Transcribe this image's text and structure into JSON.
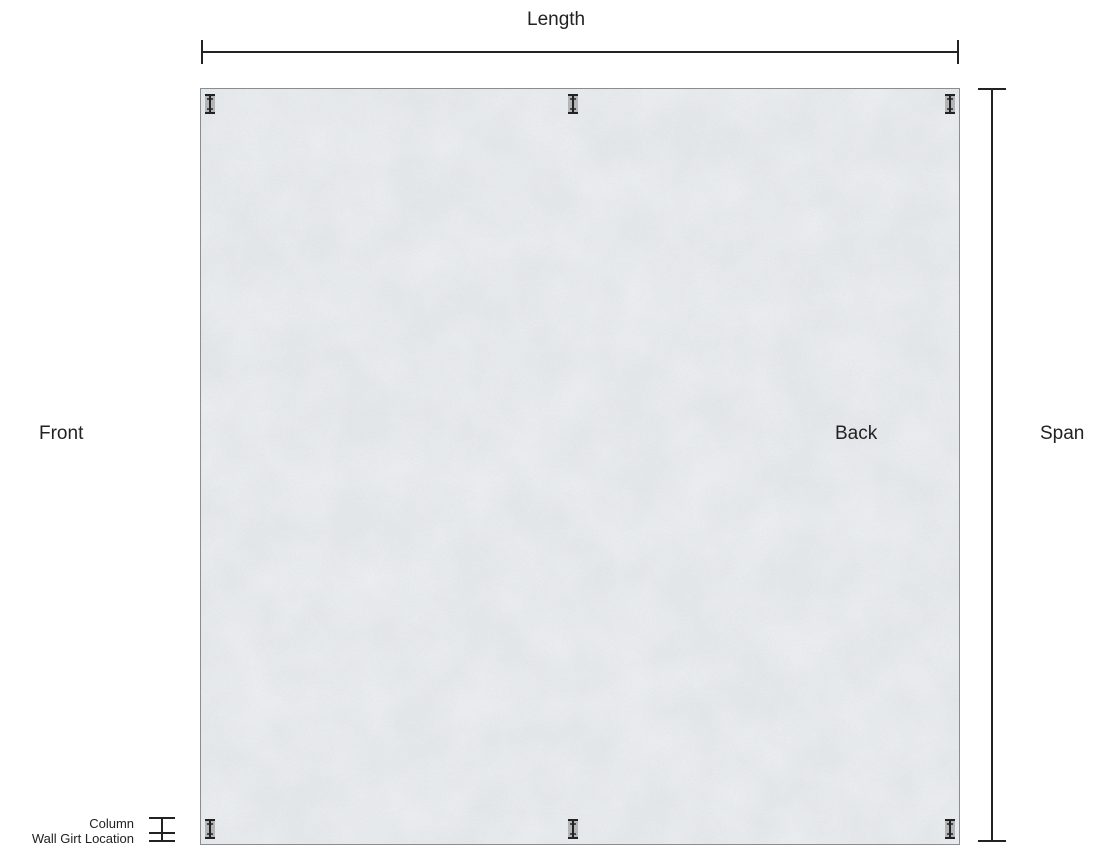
{
  "labels": {
    "length": "Length",
    "span": "Span",
    "front": "Front",
    "back": "Back"
  },
  "legend": {
    "column": "Column",
    "wall_girt_location": "Wall Girt Location"
  },
  "columns": [
    {
      "name": "column-top-left"
    },
    {
      "name": "column-top-middle"
    },
    {
      "name": "column-top-right"
    },
    {
      "name": "column-bottom-left"
    },
    {
      "name": "column-bottom-middle"
    },
    {
      "name": "column-bottom-right"
    }
  ],
  "colors": {
    "slab": "#dde1e4",
    "slab_light": "#eef0f2",
    "dimension_line": "#222222",
    "column": "#333333"
  }
}
